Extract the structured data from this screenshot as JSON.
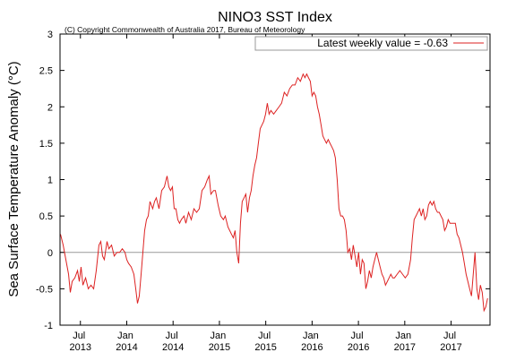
{
  "chart_data": {
    "type": "line",
    "title": "NINO3 SST Index",
    "subtitle": "(C) Copyright Commonwealth of Australia 2017, Bureau of Meteorology",
    "ylabel": "Sea Surface Temperature Anomaly (°C)",
    "xlim": [
      2013.28,
      2017.92
    ],
    "ylim": [
      -1,
      3
    ],
    "yticks": [
      -1,
      -0.5,
      0,
      0.5,
      1,
      1.5,
      2,
      2.5,
      3
    ],
    "xticks": [
      {
        "value": 2013.5,
        "label": "Jul 2013"
      },
      {
        "value": 2014.0,
        "label": "Jan 2014"
      },
      {
        "value": 2014.5,
        "label": "Jul 2014"
      },
      {
        "value": 2015.0,
        "label": "Jan 2015"
      },
      {
        "value": 2015.5,
        "label": "Jul 2015"
      },
      {
        "value": 2016.0,
        "label": "Jan 2016"
      },
      {
        "value": 2016.5,
        "label": "Jul 2016"
      },
      {
        "value": 2017.0,
        "label": "Jan 2017"
      },
      {
        "value": 2017.5,
        "label": "Jul 2017"
      }
    ],
    "zero_line": 0,
    "legend": "upper right",
    "series": [
      {
        "name": "Latest weekly value = -0.63",
        "color": "#dd2222",
        "x": [
          2013.285,
          2013.314,
          2013.343,
          2013.372,
          2013.391,
          2013.411,
          2013.44,
          2013.469,
          2013.488,
          2013.507,
          2013.527,
          2013.556,
          2013.585,
          2013.614,
          2013.643,
          2013.671,
          2013.7,
          2013.72,
          2013.739,
          2013.758,
          2013.787,
          2013.807,
          2013.836,
          2013.865,
          2013.894,
          2013.923,
          2013.952,
          2013.981,
          2014.0,
          2014.019,
          2014.048,
          2014.077,
          2014.097,
          2014.116,
          2014.135,
          2014.155,
          2014.174,
          2014.193,
          2014.213,
          2014.232,
          2014.251,
          2014.28,
          2014.3,
          2014.319,
          2014.348,
          2014.377,
          2014.406,
          2014.435,
          2014.454,
          2014.473,
          2014.493,
          2014.512,
          2014.531,
          2014.551,
          2014.57,
          2014.589,
          2014.618,
          2014.638,
          2014.667,
          2014.696,
          2014.725,
          2014.754,
          2014.783,
          2014.812,
          2014.841,
          2014.87,
          2014.889,
          2014.908,
          2014.937,
          2014.957,
          2014.986,
          2015.014,
          2015.043,
          2015.063,
          2015.092,
          2015.111,
          2015.13,
          2015.15,
          2015.169,
          2015.188,
          2015.208,
          2015.227,
          2015.246,
          2015.266,
          2015.285,
          2015.304,
          2015.324,
          2015.343,
          2015.362,
          2015.382,
          2015.401,
          2015.42,
          2015.44,
          2015.459,
          2015.478,
          2015.498,
          2015.517,
          2015.536,
          2015.556,
          2015.585,
          2015.614,
          2015.643,
          2015.671,
          2015.7,
          2015.729,
          2015.758,
          2015.787,
          2015.816,
          2015.845,
          2015.874,
          2015.903,
          2015.923,
          2015.942,
          2015.961,
          2015.981,
          2016.0,
          2016.019,
          2016.039,
          2016.058,
          2016.077,
          2016.097,
          2016.116,
          2016.135,
          2016.155,
          2016.174,
          2016.193,
          2016.213,
          2016.232,
          2016.251,
          2016.271,
          2016.29,
          2016.309,
          2016.329,
          2016.348,
          2016.367,
          2016.386,
          2016.406,
          2016.425,
          2016.444,
          2016.464,
          2016.483,
          2016.502,
          2016.522,
          2016.541,
          2016.56,
          2016.58,
          2016.599,
          2016.618,
          2016.638,
          2016.657,
          2016.676,
          2016.696,
          2016.715,
          2016.734,
          2016.754,
          2016.773,
          2016.792,
          2016.812,
          2016.831,
          2016.85,
          2016.87,
          2016.889,
          2016.918,
          2016.947,
          2016.976,
          2017.005,
          2017.034,
          2017.063,
          2017.082,
          2017.101,
          2017.121,
          2017.14,
          2017.159,
          2017.179,
          2017.198,
          2017.217,
          2017.237,
          2017.256,
          2017.275,
          2017.295,
          2017.314,
          2017.333,
          2017.353,
          2017.372,
          2017.391,
          2017.411,
          2017.43,
          2017.449,
          2017.469,
          2017.488,
          2017.517,
          2017.546,
          2017.565,
          2017.585,
          2017.604,
          2017.623,
          2017.643,
          2017.662,
          2017.681,
          2017.7,
          2017.72,
          2017.739,
          2017.758,
          2017.778,
          2017.797,
          2017.816,
          2017.836,
          2017.855,
          2017.874,
          2017.894
        ],
        "values": [
          0.25,
          0.1,
          -0.1,
          -0.3,
          -0.55,
          -0.4,
          -0.35,
          -0.25,
          -0.4,
          -0.2,
          -0.45,
          -0.35,
          -0.5,
          -0.45,
          -0.5,
          -0.25,
          0.1,
          0.15,
          -0.05,
          -0.1,
          0.15,
          0.05,
          0.1,
          -0.05,
          0.0,
          0.0,
          0.05,
          0.0,
          -0.1,
          -0.15,
          -0.2,
          -0.3,
          -0.5,
          -0.7,
          -0.6,
          -0.3,
          0.0,
          0.3,
          0.45,
          0.5,
          0.7,
          0.6,
          0.7,
          0.75,
          0.6,
          0.85,
          0.9,
          1.05,
          0.9,
          0.85,
          0.9,
          0.6,
          0.6,
          0.45,
          0.4,
          0.45,
          0.5,
          0.4,
          0.55,
          0.45,
          0.6,
          0.55,
          0.6,
          0.85,
          0.9,
          1.0,
          1.05,
          0.8,
          0.85,
          0.85,
          0.65,
          0.5,
          0.45,
          0.5,
          0.35,
          0.3,
          0.25,
          0.2,
          0.3,
          0.0,
          -0.15,
          0.4,
          0.7,
          0.75,
          0.8,
          0.55,
          0.75,
          0.85,
          1.05,
          1.2,
          1.3,
          1.5,
          1.7,
          1.75,
          1.8,
          1.9,
          2.05,
          1.9,
          1.95,
          1.9,
          1.95,
          2.0,
          2.05,
          2.2,
          2.15,
          2.25,
          2.3,
          2.3,
          2.4,
          2.35,
          2.45,
          2.4,
          2.45,
          2.4,
          2.35,
          2.15,
          2.2,
          2.15,
          2.0,
          1.9,
          1.75,
          1.6,
          1.55,
          1.5,
          1.55,
          1.5,
          1.45,
          1.4,
          1.3,
          1.0,
          0.6,
          0.5,
          0.5,
          0.45,
          0.3,
          0.0,
          0.05,
          -0.1,
          0.1,
          -0.05,
          -0.2,
          0.0,
          -0.3,
          -0.1,
          -0.15,
          -0.5,
          -0.4,
          -0.25,
          -0.35,
          -0.2,
          -0.1,
          0.0,
          -0.1,
          -0.2,
          -0.3,
          -0.35,
          -0.45,
          -0.4,
          -0.35,
          -0.3,
          -0.35,
          -0.35,
          -0.3,
          -0.25,
          -0.3,
          -0.35,
          -0.3,
          -0.1,
          0.2,
          0.45,
          0.5,
          0.55,
          0.6,
          0.5,
          0.6,
          0.45,
          0.5,
          0.65,
          0.7,
          0.65,
          0.7,
          0.6,
          0.55,
          0.55,
          0.5,
          0.45,
          0.3,
          0.35,
          0.45,
          0.4,
          0.4,
          0.4,
          0.25,
          0.2,
          0.1,
          0.0,
          -0.15,
          -0.3,
          -0.4,
          -0.5,
          -0.6,
          -0.3,
          0.0,
          -0.5,
          -0.65,
          -0.45,
          -0.55,
          -0.8,
          -0.75,
          -0.63
        ]
      }
    ]
  }
}
